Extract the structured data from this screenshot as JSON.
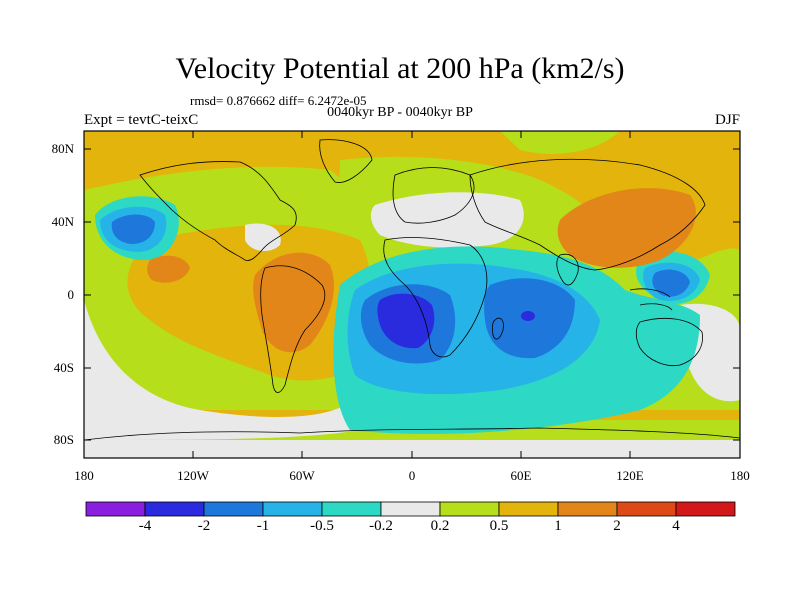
{
  "title": "Velocity Potential at 200 hPa (km2/s)",
  "stats": "rmsd= 0.876662  diff= 6.2472e-05",
  "subtitle": "0040kyr BP - 0040kyr BP",
  "experiment": "Expt = tevtC-teixC",
  "season": "DJF",
  "y_axis": {
    "ticks": [
      "80N",
      "40N",
      "0",
      "40S",
      "80S"
    ]
  },
  "x_axis": {
    "ticks": [
      "180",
      "120W",
      "60W",
      "0",
      "60E",
      "120E",
      "180"
    ]
  },
  "colorbar": {
    "colors": [
      "#8a1fe0",
      "#2a2adf",
      "#1e78dc",
      "#26b4e8",
      "#2dd8c4",
      "#e9e9e9",
      "#b6de1a",
      "#e3b40c",
      "#e2861a",
      "#dd4a16",
      "#d21818"
    ],
    "labels": [
      "-4",
      "-2",
      "-1",
      "-0.5",
      "-0.2",
      "0.2",
      "0.5",
      "1",
      "2",
      "4"
    ]
  }
}
